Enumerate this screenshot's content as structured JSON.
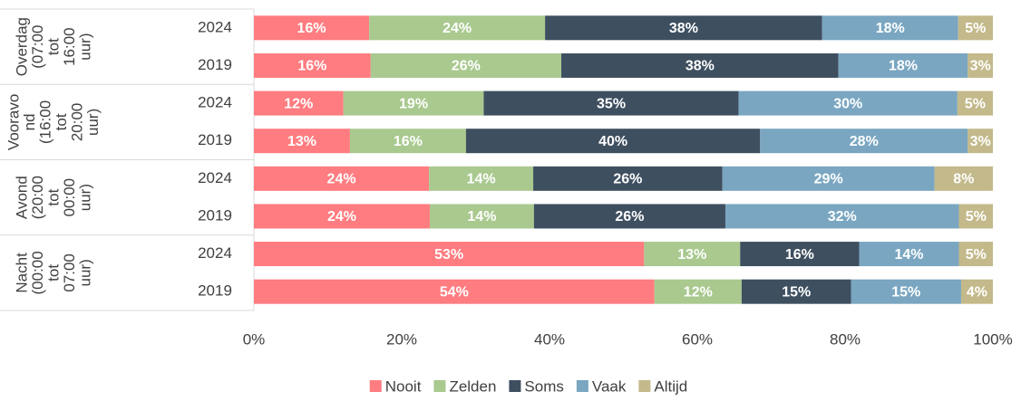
{
  "chart_data": {
    "type": "stacked_barh",
    "groups": [
      {
        "lines": [
          "Overdag",
          "(07:00",
          "tot",
          "16:00",
          "uur)"
        ]
      },
      {
        "lines": [
          "Vooravo",
          "nd",
          "(16:00",
          "tot",
          "20:00",
          "uur)"
        ]
      },
      {
        "lines": [
          "Avond",
          "(20:00",
          "tot",
          "00:00",
          "uur)"
        ]
      },
      {
        "lines": [
          "Nacht",
          "(00:00",
          "tot",
          "07:00",
          "uur)"
        ]
      }
    ],
    "categories": [
      "2024",
      "2019",
      "2024",
      "2019",
      "2024",
      "2019",
      "2024",
      "2019"
    ],
    "series": [
      {
        "name": "Nooit",
        "color": "#ff7c80",
        "values": [
          15.6,
          15.8,
          12.1,
          13.0,
          23.7,
          23.8,
          52.8,
          54.2
        ],
        "value_labels": [
          "16%",
          "16%",
          "12%",
          "13%",
          "24%",
          "24%",
          "53%",
          "54%"
        ]
      },
      {
        "name": "Zelden",
        "color": "#a9c98f",
        "values": [
          23.8,
          25.8,
          19.0,
          15.7,
          14.1,
          14.1,
          13.0,
          11.8
        ],
        "value_labels": [
          "24%",
          "26%",
          "19%",
          "16%",
          "14%",
          "14%",
          "13%",
          "12%"
        ]
      },
      {
        "name": "Soms",
        "color": "#3e4f60",
        "values": [
          37.5,
          37.5,
          34.5,
          39.8,
          25.6,
          25.9,
          16.1,
          14.8
        ],
        "value_labels": [
          "38%",
          "38%",
          "35%",
          "40%",
          "26%",
          "26%",
          "16%",
          "15%"
        ]
      },
      {
        "name": "Vaak",
        "color": "#7aa6c1",
        "values": [
          18.4,
          17.5,
          29.6,
          28.1,
          28.7,
          31.6,
          13.5,
          14.9
        ],
        "value_labels": [
          "18%",
          "18%",
          "30%",
          "28%",
          "29%",
          "32%",
          "14%",
          "15%"
        ]
      },
      {
        "name": "Altijd",
        "color": "#c3b98a",
        "values": [
          4.7,
          3.4,
          4.8,
          3.4,
          7.9,
          4.6,
          4.6,
          4.3
        ],
        "value_labels": [
          "5%",
          "3%",
          "5%",
          "3%",
          "8%",
          "5%",
          "5%",
          "4%"
        ]
      }
    ],
    "xlim": [
      0,
      100
    ],
    "xticks": [
      {
        "value": 0,
        "label": "0%"
      },
      {
        "value": 20,
        "label": "20%"
      },
      {
        "value": 40,
        "label": "40%"
      },
      {
        "value": 60,
        "label": "60%"
      },
      {
        "value": 80,
        "label": "80%"
      },
      {
        "value": 100,
        "label": "100%"
      }
    ],
    "legend": "bottom"
  }
}
